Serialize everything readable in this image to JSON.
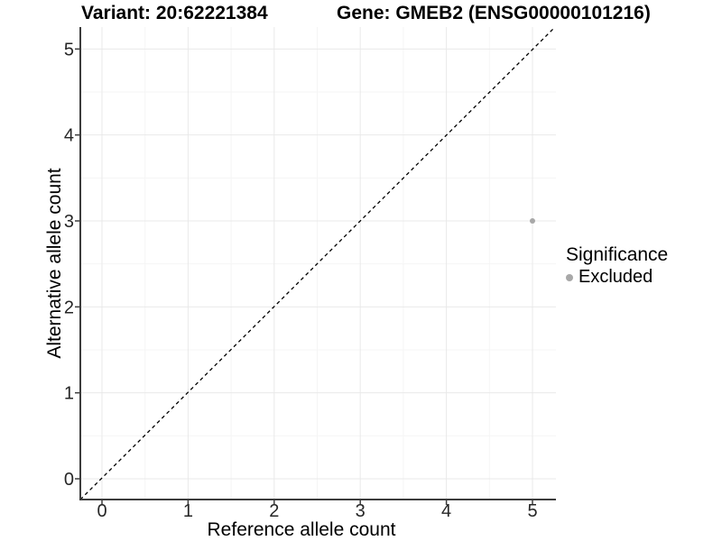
{
  "chart_data": {
    "type": "scatter",
    "title_left": "Variant: 20:62221384",
    "title_right": "Gene: GMEB2 (ENSG00000101216)",
    "xlabel": "Reference allele count",
    "ylabel": "Alternative allele count",
    "xticks": [
      0,
      1,
      2,
      3,
      4,
      5
    ],
    "yticks": [
      0,
      1,
      2,
      3,
      4,
      5
    ],
    "xlim": [
      -0.25,
      5.25
    ],
    "ylim": [
      -0.25,
      5.25
    ],
    "grid": "major and minor, minor at 0.5 steps",
    "identity_line": {
      "style": "dashed",
      "intercept": 0,
      "slope": 1,
      "color": "#000000"
    },
    "series": [
      {
        "name": "Excluded",
        "color": "#a8a8a8",
        "points": [
          {
            "x": 5,
            "y": 3
          }
        ]
      }
    ],
    "legend": {
      "title": "Significance",
      "position": "right",
      "items": [
        {
          "label": "Excluded",
          "color": "#a8a8a8"
        }
      ]
    },
    "colors": {
      "background": "#ffffff",
      "grid_major": "#e9e9e9",
      "grid_minor": "#f5f5f5",
      "axis_line": "#3c3c3c",
      "tick_text": "#262626"
    }
  }
}
